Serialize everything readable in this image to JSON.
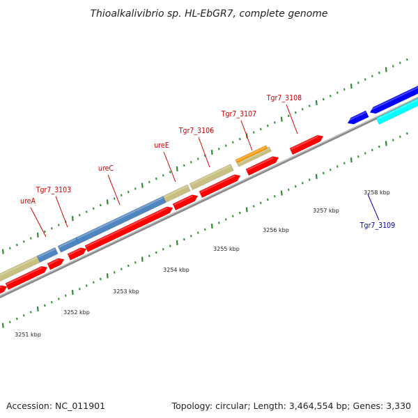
{
  "title": "Thioalkalivibrio sp. HL-EbGR7, complete genome",
  "footer": {
    "accession": "Accession: NC_011901",
    "summary": "Topology: circular; Length: 3,464,554 bp; Genes: 3,330"
  },
  "colors": {
    "cds_forward": "#ff0000",
    "cds_reverse": "#0000ff",
    "cds_highlight": "#00ffff",
    "urease": "#4f86bf",
    "khaki": "#c8c080",
    "orange": "#ff9900",
    "backbone": "#8a8a8a",
    "tick": "#2e8b2e",
    "label_forward": "#cc0000",
    "label_reverse": "#0000aa"
  },
  "scale_labels": [
    "3251 kbp",
    "3252 kbp",
    "3253 kbp",
    "3254 kbp",
    "3255 kbp",
    "3256 kbp",
    "3257 kbp",
    "3258 kbp"
  ],
  "gene_labels": [
    {
      "text": "ureA",
      "strand": "forward"
    },
    {
      "text": "Tgr7_3103",
      "strand": "forward"
    },
    {
      "text": "ureC",
      "strand": "forward"
    },
    {
      "text": "ureE",
      "strand": "forward"
    },
    {
      "text": "Tgr7_3106",
      "strand": "forward"
    },
    {
      "text": "Tgr7_3107",
      "strand": "forward"
    },
    {
      "text": "Tgr7_3108",
      "strand": "forward"
    },
    {
      "text": "Tgr7_3109",
      "strand": "reverse"
    }
  ]
}
